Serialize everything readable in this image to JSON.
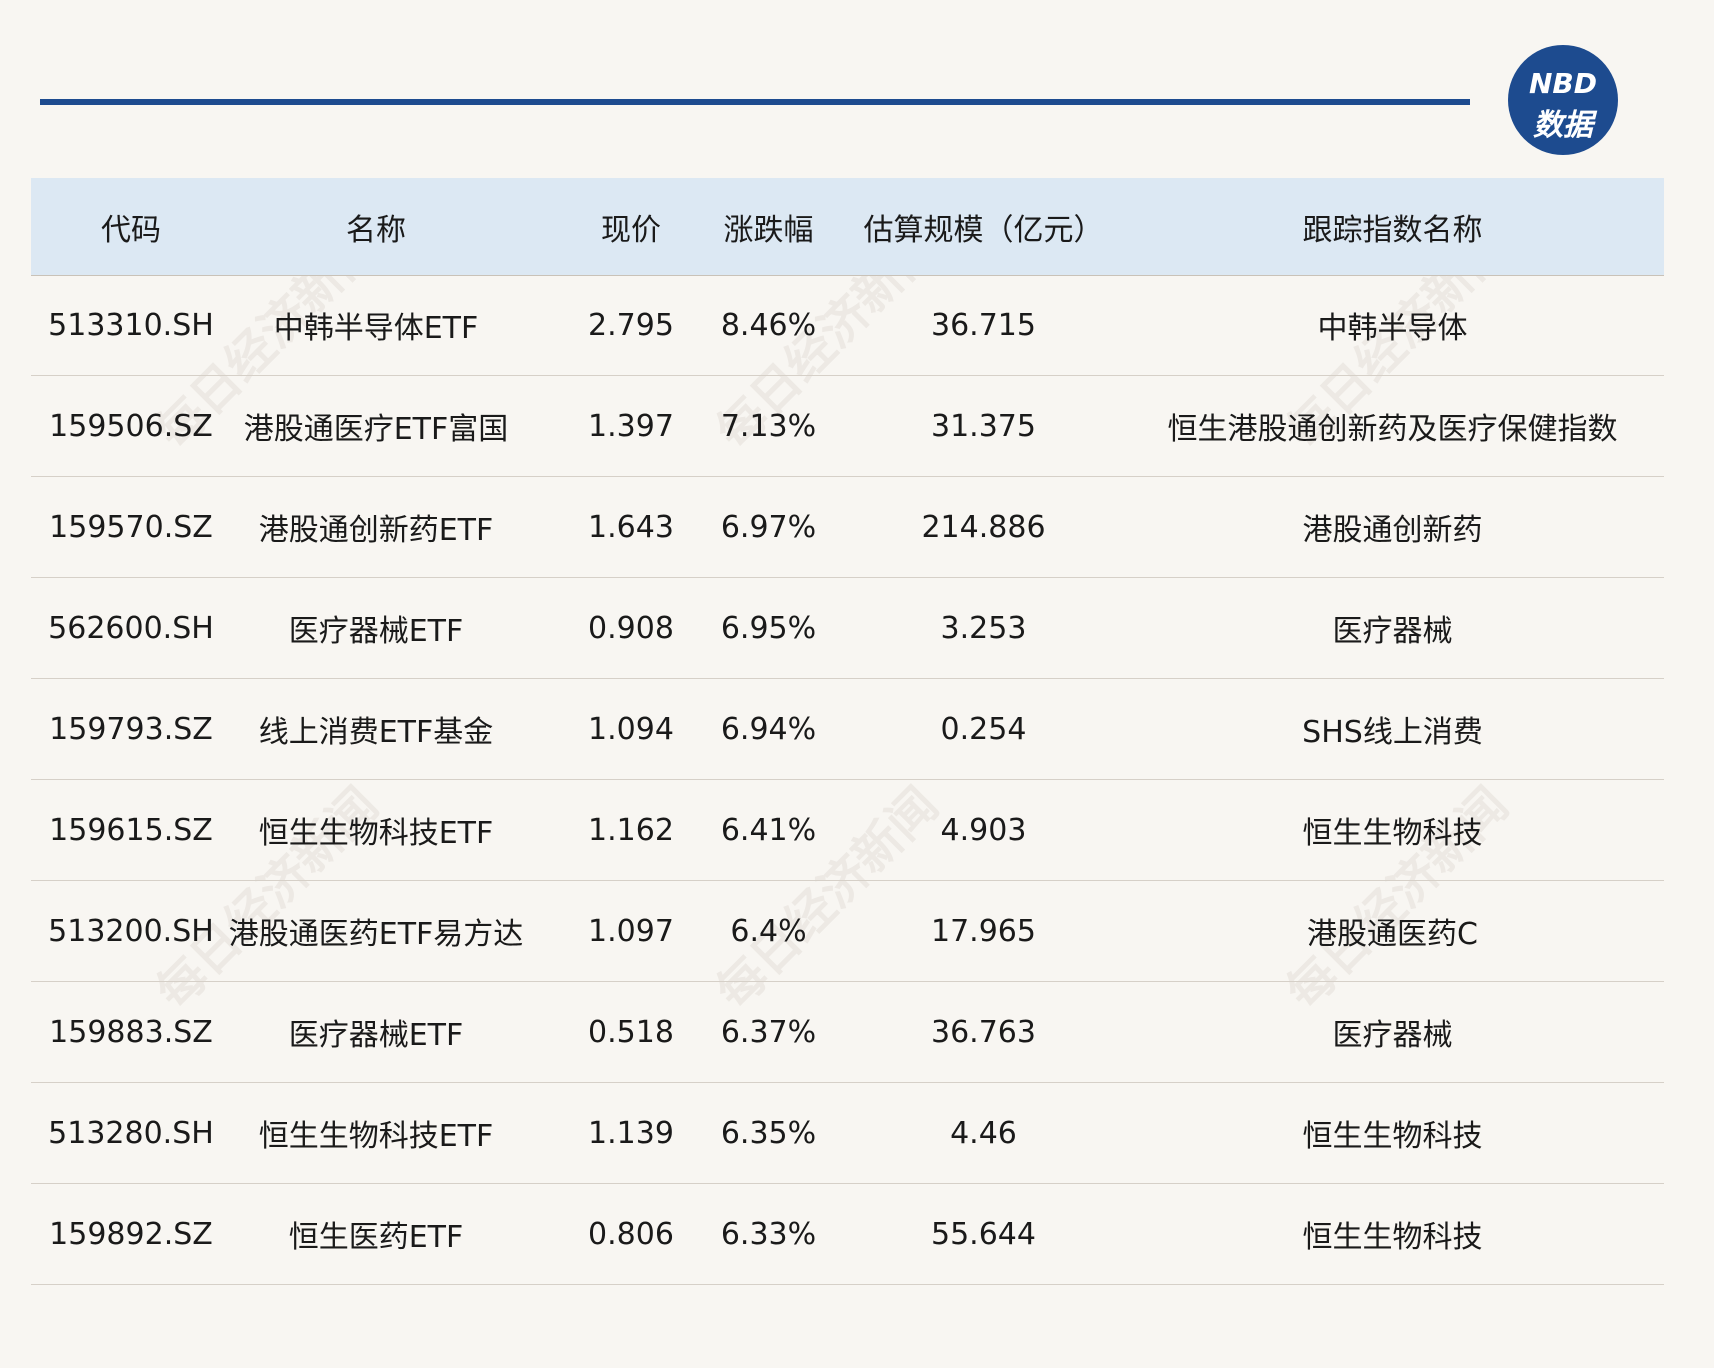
{
  "logo": {
    "top": "NBD",
    "bottom": "数据"
  },
  "watermark": "每日经济新闻",
  "table": {
    "header": [
      "代码",
      "名称",
      "现价",
      "涨跌幅",
      "估算规模（亿元）",
      "跟踪指数名称"
    ],
    "rows": [
      [
        "513310.SH",
        "中韩半导体ETF",
        "2.795",
        "8.46%",
        "36.715",
        "中韩半导体"
      ],
      [
        "159506.SZ",
        "港股通医疗ETF富国",
        "1.397",
        "7.13%",
        "31.375",
        "恒生港股通创新药及医疗保健指数"
      ],
      [
        "159570.SZ",
        "港股通创新药ETF",
        "1.643",
        "6.97%",
        "214.886",
        "港股通创新药"
      ],
      [
        "562600.SH",
        "医疗器械ETF",
        "0.908",
        "6.95%",
        "3.253",
        "医疗器械"
      ],
      [
        "159793.SZ",
        "线上消费ETF基金",
        "1.094",
        "6.94%",
        "0.254",
        "SHS线上消费"
      ],
      [
        "159615.SZ",
        "恒生生物科技ETF",
        "1.162",
        "6.41%",
        "4.903",
        "恒生生物科技"
      ],
      [
        "513200.SH",
        "港股通医药ETF易方达",
        "1.097",
        "6.4%",
        "17.965",
        "港股通医药C"
      ],
      [
        "159883.SZ",
        "医疗器械ETF",
        "0.518",
        "6.37%",
        "36.763",
        "医疗器械"
      ],
      [
        "513280.SH",
        "恒生生物科技ETF",
        "1.139",
        "6.35%",
        "4.46",
        "恒生生物科技"
      ],
      [
        "159892.SZ",
        "恒生医药ETF",
        "0.806",
        "6.33%",
        "55.644",
        "恒生生物科技"
      ]
    ]
  }
}
